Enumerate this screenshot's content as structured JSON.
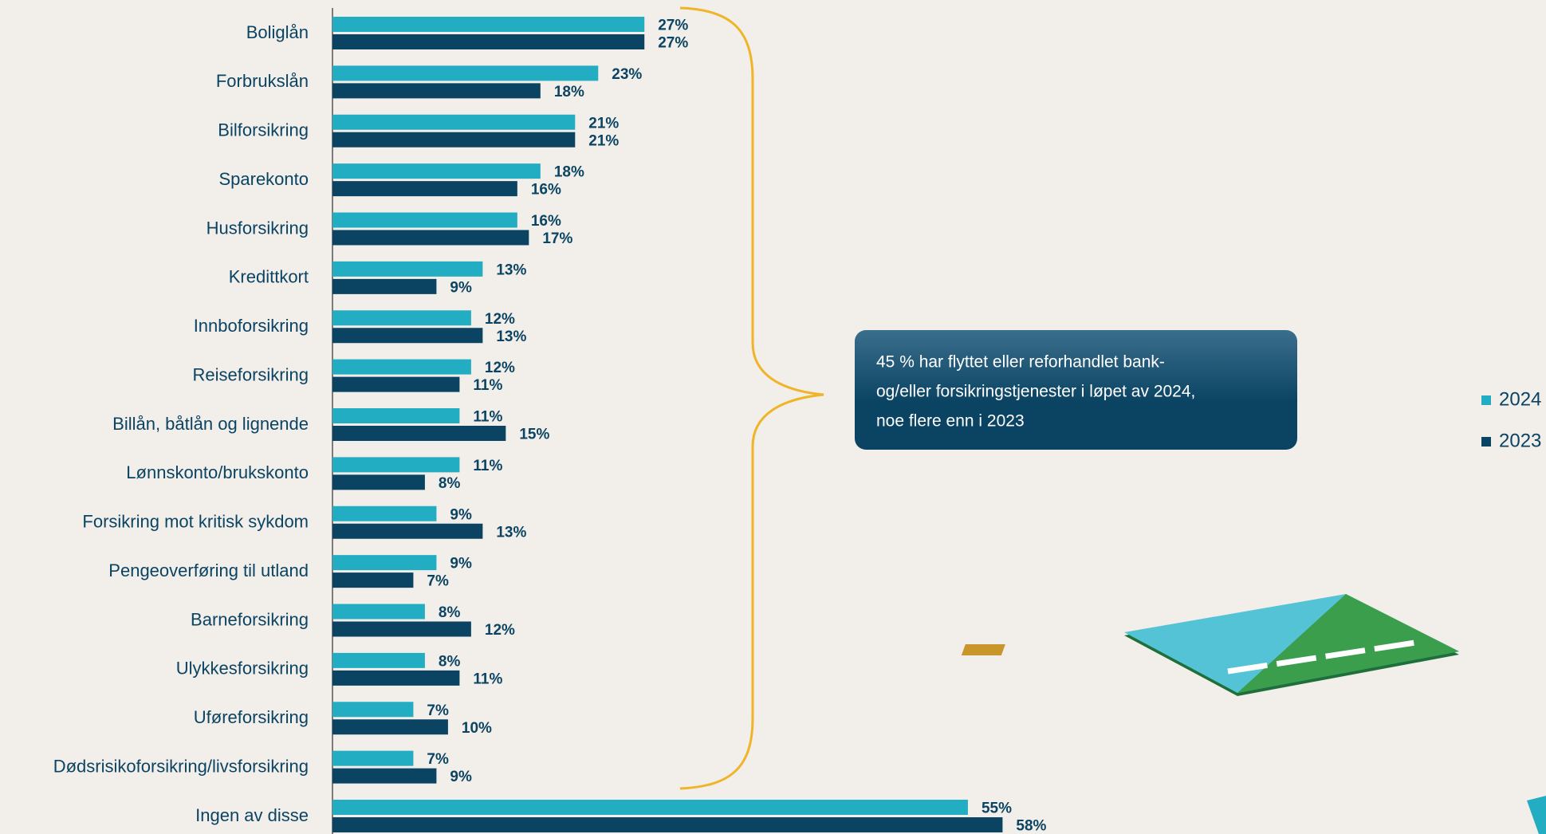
{
  "chart_data": {
    "type": "bar",
    "orientation": "horizontal",
    "categories": [
      "Boliglån",
      "Forbrukslån",
      "Bilforsikring",
      "Sparekonto",
      "Husforsikring",
      "Kredittkort",
      "Innboforsikring",
      "Reiseforsikring",
      "Billån, båtlån og lignende",
      "Lønnskonto/brukskonto",
      "Forsikring mot kritisk sykdom",
      "Pengeoverføring til utland",
      "Barneforsikring",
      "Ulykkesforsikring",
      "Uføreforsikring",
      "Dødsrisikoforsikring/livsforsikring",
      "Ingen av disse"
    ],
    "series": [
      {
        "name": "2024",
        "color": "#22adc2",
        "values": [
          27,
          23,
          21,
          18,
          16,
          13,
          12,
          12,
          11,
          11,
          9,
          9,
          8,
          8,
          7,
          7,
          55
        ],
        "value_labels": [
          "27%",
          "23%",
          "21%",
          "18%",
          "16%",
          "13%",
          "12%",
          "12%",
          "11%",
          "11%",
          "9%",
          "9%",
          "8%",
          "8%",
          "7%",
          "7%",
          "55%"
        ]
      },
      {
        "name": "2023",
        "color": "#0b4463",
        "values": [
          27,
          18,
          21,
          16,
          17,
          9,
          13,
          11,
          15,
          8,
          13,
          7,
          12,
          11,
          10,
          9,
          58
        ],
        "value_labels": [
          "27%",
          "18%",
          "21%",
          "16%",
          "17%",
          "9%",
          "13%",
          "11%",
          "15%",
          "8%",
          "13%",
          "7%",
          "12%",
          "11%",
          "10%",
          "9%",
          "58%"
        ]
      }
    ],
    "xlim": [
      0,
      100
    ],
    "legend": "right",
    "annotation": [
      "45 % har flyttet eller reforhandlet bank-",
      "og/eller forsikringstjenester i løpet av 2024,",
      "noe flere enn i 2023"
    ]
  }
}
